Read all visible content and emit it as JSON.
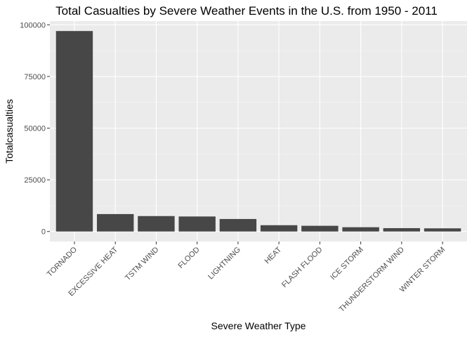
{
  "chart_data": {
    "type": "bar",
    "title": "Total Casualties by Severe Weather Events in the U.S. from 1950 - 2011",
    "xlabel": "Severe Weather Type",
    "ylabel": "Totalcasualties",
    "categories": [
      "TORNADO",
      "EXCESSIVE HEAT",
      "TSTM WIND",
      "FLOOD",
      "LIGHTNING",
      "HEAT",
      "FLASH FLOOD",
      "ICE STORM",
      "THUNDERSTORM WIND",
      "WINTER STORM"
    ],
    "values": [
      96979,
      8428,
      7461,
      7259,
      6046,
      3037,
      2755,
      2064,
      1621,
      1527
    ],
    "yticks": [
      0,
      25000,
      50000,
      75000,
      100000
    ],
    "ylim": [
      -4850,
      101800
    ],
    "grid": true,
    "legend": "none",
    "colors": {
      "bar": "#474747",
      "panel": "#ebebeb",
      "grid_major": "#ffffff",
      "grid_minor": "#f5f5f5"
    }
  }
}
